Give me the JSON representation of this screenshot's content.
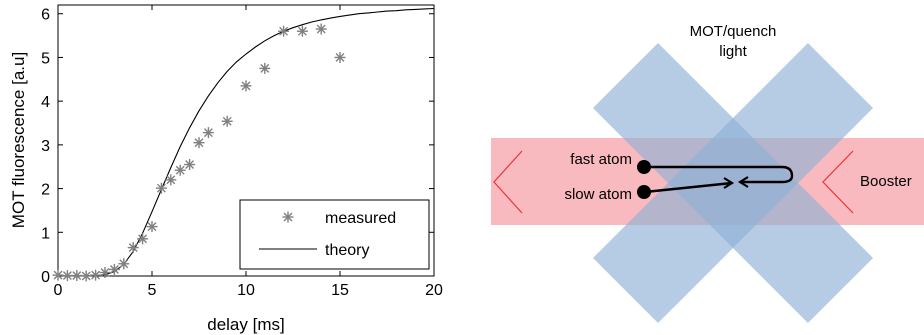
{
  "chart_data": {
    "type": "scatter",
    "xlabel": "delay [ms]",
    "ylabel": "MOT fluorescence [a.u]",
    "xlim": [
      0,
      20
    ],
    "ylim": [
      0,
      6.2
    ],
    "x_ticks": [
      "0",
      "5",
      "10",
      "15",
      "20"
    ],
    "y_ticks": [
      "0",
      "1",
      "2",
      "3",
      "4",
      "5",
      "6"
    ],
    "grid": false,
    "legend_position": "bottom-right",
    "series": [
      {
        "name": "measured",
        "kind": "scatter",
        "marker": "asterisk",
        "color": "#808080",
        "x": [
          0,
          0.5,
          1,
          1.5,
          2,
          2.5,
          3,
          3.5,
          4,
          4.5,
          5,
          5.5,
          6,
          6.5,
          7,
          7.5,
          8,
          9,
          10,
          11,
          12,
          13,
          14,
          15
        ],
        "y": [
          0.02,
          0.01,
          0.01,
          0.0,
          0.02,
          0.08,
          0.15,
          0.28,
          0.65,
          0.85,
          1.13,
          2.01,
          2.2,
          2.42,
          2.55,
          3.05,
          3.28,
          3.54,
          4.35,
          4.75,
          5.6,
          5.6,
          5.65,
          5.0
        ]
      },
      {
        "name": "theory",
        "kind": "line",
        "color": "#000000",
        "x": [
          0,
          1,
          2,
          2.5,
          3,
          3.5,
          4,
          4.5,
          5,
          5.5,
          6,
          6.5,
          7,
          7.5,
          8,
          8.5,
          9,
          9.5,
          10,
          10.5,
          11,
          11.5,
          12,
          12.5,
          13,
          13.5,
          14,
          14.5,
          15,
          15.5,
          16,
          16.5,
          17,
          17.5,
          18,
          18.5,
          19,
          19.5,
          20
        ],
        "y": [
          0,
          0,
          0.01,
          0.03,
          0.1,
          0.27,
          0.56,
          0.98,
          1.47,
          1.98,
          2.48,
          2.96,
          3.39,
          3.78,
          4.12,
          4.42,
          4.68,
          4.9,
          5.08,
          5.24,
          5.38,
          5.5,
          5.6,
          5.68,
          5.75,
          5.81,
          5.86,
          5.9,
          5.94,
          5.97,
          6.0,
          6.02,
          6.04,
          6.06,
          6.07,
          6.09,
          6.1,
          6.11,
          6.12
        ]
      }
    ]
  },
  "diagram": {
    "title_line1": "MOT/quench",
    "title_line2": "light",
    "fast_atom_label": "fast atom",
    "slow_atom_label": "slow atom",
    "booster_label": "Booster",
    "colors": {
      "laser_beam": "#f5a3a8",
      "mot_beam": "#8fb0d6",
      "booster_chevron": "#e8333d",
      "atom": "#000000"
    }
  }
}
